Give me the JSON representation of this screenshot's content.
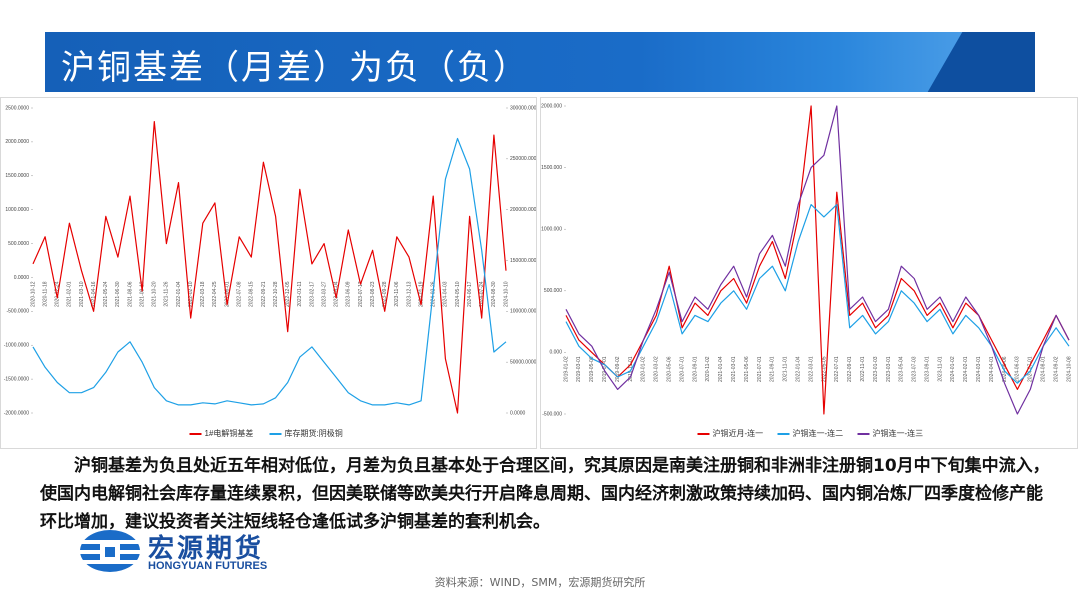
{
  "header": {
    "title": "沪铜基差（月差）为负（负）"
  },
  "chart_data": [
    {
      "type": "line",
      "categories": [
        "2020-10-12",
        "2020-11-18",
        "2020-12-24",
        "2021-02-01",
        "2021-03-10",
        "2021-04-16",
        "2021-05-24",
        "2021-06-30",
        "2021-08-06",
        "2021-09-13",
        "2021-10-20",
        "2021-11-26",
        "2022-01-04",
        "2022-02-10",
        "2022-03-18",
        "2022-04-25",
        "2022-06-01",
        "2022-07-08",
        "2022-08-15",
        "2022-09-21",
        "2022-10-28",
        "2022-12-05",
        "2023-01-11",
        "2023-02-17",
        "2023-03-27",
        "2023-05-04",
        "2023-06-09",
        "2023-07-17",
        "2023-08-23",
        "2023-09-28",
        "2023-11-06",
        "2023-12-13",
        "2024-01-19",
        "2024-02-26",
        "2024-04-03",
        "2024-05-10",
        "2024-06-17",
        "2024-07-24",
        "2024-08-30",
        "2024-10-10"
      ],
      "series": [
        {
          "name": "1#电解铜基差",
          "color": "#e60000",
          "values": [
            200,
            600,
            -300,
            800,
            100,
            -500,
            900,
            300,
            1200,
            -200,
            2300,
            500,
            1400,
            -600,
            800,
            1100,
            -400,
            600,
            300,
            1700,
            900,
            -800,
            1300,
            200,
            500,
            -300,
            700,
            -100,
            400,
            -500,
            600,
            300,
            -400,
            1200,
            -1200,
            -2000,
            900,
            -600,
            2100,
            100
          ]
        },
        {
          "name": "库存期货:阴极铜",
          "color": "#1ea0e6",
          "axis": "y2",
          "values": [
            65000,
            45000,
            30000,
            20000,
            20000,
            25000,
            40000,
            60000,
            70000,
            50000,
            25000,
            12000,
            8000,
            8000,
            10000,
            9000,
            12000,
            10000,
            8000,
            9000,
            15000,
            30000,
            55000,
            65000,
            50000,
            35000,
            20000,
            12000,
            8000,
            8000,
            10000,
            8000,
            12000,
            120000,
            230000,
            270000,
            240000,
            160000,
            60000,
            70000
          ]
        }
      ],
      "ylim": [
        -2000,
        2500
      ],
      "yticks": [
        {
          "value": -2000,
          "label": "-2000.0000"
        },
        {
          "value": -1500,
          "label": "-1500.0000"
        },
        {
          "value": -1000,
          "label": "-1000.0000"
        },
        {
          "value": -500,
          "label": "-500.0000"
        },
        {
          "value": 0,
          "label": "0.0000"
        },
        {
          "value": 500,
          "label": "500.0000"
        },
        {
          "value": 1000,
          "label": "1000.0000"
        },
        {
          "value": 1500,
          "label": "1500.0000"
        },
        {
          "value": 2000,
          "label": "2000.0000"
        },
        {
          "value": 2500,
          "label": "2500.0000"
        }
      ],
      "y2lim": [
        0,
        300000
      ],
      "y2ticks": [
        {
          "value": 0,
          "label": "0.0000"
        },
        {
          "value": 50000,
          "label": "50000.0000"
        },
        {
          "value": 100000,
          "label": "100000.0000"
        },
        {
          "value": 150000,
          "label": "150000.0000"
        },
        {
          "value": 200000,
          "label": "200000.0000"
        },
        {
          "value": 250000,
          "label": "250000.0000"
        },
        {
          "value": 300000,
          "label": "300000.0000"
        }
      ],
      "grid": false,
      "legend": "bottom"
    },
    {
      "type": "line",
      "categories": [
        "2019-01-02",
        "2019-03-01",
        "2019-05-06",
        "2019-07-01",
        "2019-09-02",
        "2019-11-01",
        "2020-01-02",
        "2020-03-02",
        "2020-05-06",
        "2020-07-01",
        "2020-09-01",
        "2020-11-02",
        "2021-01-04",
        "2021-03-01",
        "2021-05-06",
        "2021-07-01",
        "2021-09-01",
        "2021-11-01",
        "2022-01-04",
        "2022-03-01",
        "2022-05-05",
        "2022-07-01",
        "2022-09-01",
        "2022-11-01",
        "2023-01-03",
        "2023-03-01",
        "2023-05-04",
        "2023-07-03",
        "2023-09-01",
        "2023-11-01",
        "2024-01-02",
        "2024-02-01",
        "2024-03-01",
        "2024-04-01",
        "2024-05-06",
        "2024-06-03",
        "2024-07-01",
        "2024-08-01",
        "2024-09-02",
        "2024-10-08"
      ],
      "series": [
        {
          "name": "沪铜近月-连一",
          "color": "#e60000",
          "values": [
            300,
            100,
            0,
            -100,
            -200,
            -100,
            100,
            300,
            700,
            200,
            400,
            300,
            500,
            600,
            400,
            700,
            900,
            600,
            1100,
            2000,
            -500,
            1300,
            300,
            400,
            200,
            300,
            600,
            500,
            300,
            400,
            200,
            400,
            300,
            100,
            -100,
            -300,
            -100,
            100,
            300,
            100
          ]
        },
        {
          "name": "沪铜连一-连二",
          "color": "#1ea0e6",
          "values": [
            250,
            50,
            -50,
            -100,
            -200,
            -150,
            50,
            250,
            550,
            150,
            300,
            250,
            400,
            500,
            350,
            600,
            700,
            500,
            900,
            1200,
            1100,
            1200,
            200,
            300,
            150,
            250,
            500,
            400,
            250,
            350,
            150,
            300,
            200,
            50,
            -150,
            -250,
            -150,
            50,
            200,
            50
          ]
        },
        {
          "name": "沪铜连一-连三",
          "color": "#7030a0",
          "values": [
            350,
            150,
            50,
            -150,
            -300,
            -200,
            100,
            350,
            650,
            250,
            450,
            350,
            550,
            700,
            450,
            800,
            950,
            700,
            1200,
            1500,
            1600,
            2000,
            350,
            450,
            250,
            350,
            700,
            600,
            350,
            450,
            250,
            450,
            300,
            50,
            -250,
            -500,
            -300,
            50,
            300,
            100
          ]
        }
      ],
      "ylim": [
        -500,
        2000
      ],
      "yticks": [
        {
          "value": -500,
          "label": "-500.000"
        },
        {
          "value": 0,
          "label": "0.000"
        },
        {
          "value": 500,
          "label": "500.000"
        },
        {
          "value": 1000,
          "label": "1000.000"
        },
        {
          "value": 1500,
          "label": "1500.000"
        },
        {
          "value": 2000,
          "label": "2000.000"
        }
      ],
      "grid": false,
      "legend": "bottom"
    }
  ],
  "body": {
    "text": "沪铜基差为负且处近五年相对低位，月差为负且基本处于合理区间，究其原因是南美注册铜和非洲非注册铜10月中下旬集中流入，使国内电解铜社会库存量连续累积，但因美联储等欧美央行开启降息周期、国内经济刺激政策持续加码、国内铜冶炼厂四季度检修产能环比增加，建议投资者关注短线轻仓逢低试多沪铜基差的套利机会。"
  },
  "logo": {
    "name": "宏源期货",
    "name_en": "HONGYUAN FUTURES"
  },
  "source": "资料来源：WIND，SMM，宏源期货研究所"
}
